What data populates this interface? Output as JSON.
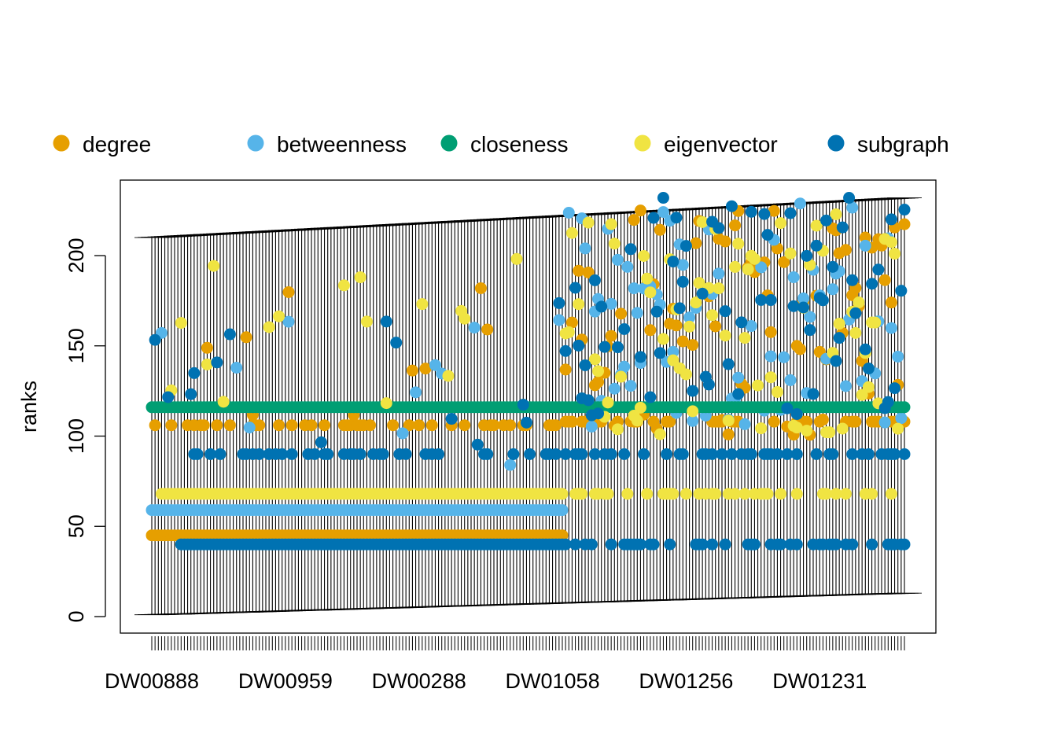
{
  "chart_data": {
    "type": "scatter",
    "title": "",
    "xlabel": "",
    "ylabel": "ranks",
    "ylim": [
      0,
      232
    ],
    "n_nodes": 232,
    "yticks": [
      0,
      50,
      100,
      150,
      200
    ],
    "xtick_labels": [
      {
        "index": 1,
        "label": "DW00888"
      },
      {
        "index": 42,
        "label": "DW00959"
      },
      {
        "index": 83,
        "label": "DW00288"
      },
      {
        "index": 124,
        "label": "DW01058"
      },
      {
        "index": 165,
        "label": "DW01256"
      },
      {
        "index": 206,
        "label": "DW01231"
      }
    ],
    "legend_position": "top",
    "grid": false,
    "series": [
      {
        "name": "degree",
        "color": "#E69F00",
        "segments": [
          {
            "from": 1,
            "to": 127,
            "value": 45
          },
          {
            "from": 1,
            "to": 127,
            "value": 106,
            "pattern": "sparse"
          },
          {
            "from": 1,
            "to": 127,
            "value": 145,
            "pattern": "occasional"
          },
          {
            "from": 128,
            "to": 232,
            "value": 108,
            "pattern": "sparse"
          },
          {
            "from": 128,
            "to": 232,
            "value": 165,
            "pattern": "scattered"
          }
        ]
      },
      {
        "name": "betweenness",
        "color": "#56B4E9",
        "segments": [
          {
            "from": 1,
            "to": 127,
            "value": 59
          },
          {
            "from": 1,
            "to": 127,
            "value": 122,
            "pattern": "occasional"
          },
          {
            "from": 128,
            "to": 232,
            "value": 170,
            "pattern": "scattered"
          }
        ]
      },
      {
        "name": "closeness",
        "color": "#009E73",
        "segments": [
          {
            "from": 1,
            "to": 232,
            "value": 116
          }
        ]
      },
      {
        "name": "eigenvector",
        "color": "#F0E442",
        "segments": [
          {
            "from": 4,
            "to": 127,
            "value": 68
          },
          {
            "from": 1,
            "to": 127,
            "value": 160,
            "pattern": "occasional"
          },
          {
            "from": 128,
            "to": 232,
            "value": 68,
            "pattern": "sparse"
          },
          {
            "from": 128,
            "to": 232,
            "value": 165,
            "pattern": "scattered"
          }
        ]
      },
      {
        "name": "subgraph",
        "color": "#0072B2",
        "segments": [
          {
            "from": 10,
            "to": 127,
            "value": 40
          },
          {
            "from": 10,
            "to": 127,
            "value": 90,
            "pattern": "sparse"
          },
          {
            "from": 1,
            "to": 127,
            "value": 140,
            "pattern": "occasional"
          },
          {
            "from": 128,
            "to": 232,
            "value": 40,
            "pattern": "sparse"
          },
          {
            "from": 128,
            "to": 232,
            "value": 90,
            "pattern": "sparse"
          },
          {
            "from": 128,
            "to": 232,
            "value": 175,
            "pattern": "scattered"
          }
        ]
      }
    ]
  }
}
